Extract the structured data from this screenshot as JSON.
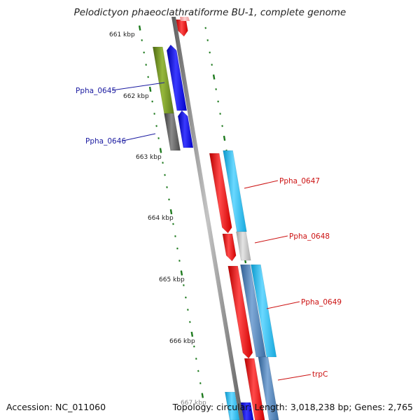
{
  "title": "Pelodictyon phaeoclathratiforme BU-1, complete genome",
  "footer": {
    "accession": "Accession: NC_011060",
    "summary": "Topology: circular; Length: 3,018,238 bp; Genes: 2,765"
  },
  "tick_labels": [
    "661 kbp",
    "662 kbp",
    "663 kbp",
    "664 kbp",
    "665 kbp",
    "666 kbp",
    "667 kbp"
  ],
  "gene_labels": [
    {
      "text": "Ppha_0645",
      "color": "#1a1aa0"
    },
    {
      "text": "Ppha_0646",
      "color": "#1a1aa0"
    },
    {
      "text": "Ppha_0647",
      "color": "#cc1111"
    },
    {
      "text": "Ppha_0648",
      "color": "#cc1111"
    },
    {
      "text": "Ppha_0649",
      "color": "#cc1111"
    },
    {
      "text": "trpC",
      "color": "#cc1111"
    }
  ],
  "colors": {
    "backbone": "#808080",
    "tick": "#1e7a1e",
    "red": "#ee1111",
    "pink": "#f4a0a0",
    "blue": "#1010ee",
    "olive": "#6b8e23",
    "gray": "#555555",
    "cyan": "#22bbee",
    "lightgray": "#bbbbbb",
    "steel": "#4a7bb0"
  }
}
